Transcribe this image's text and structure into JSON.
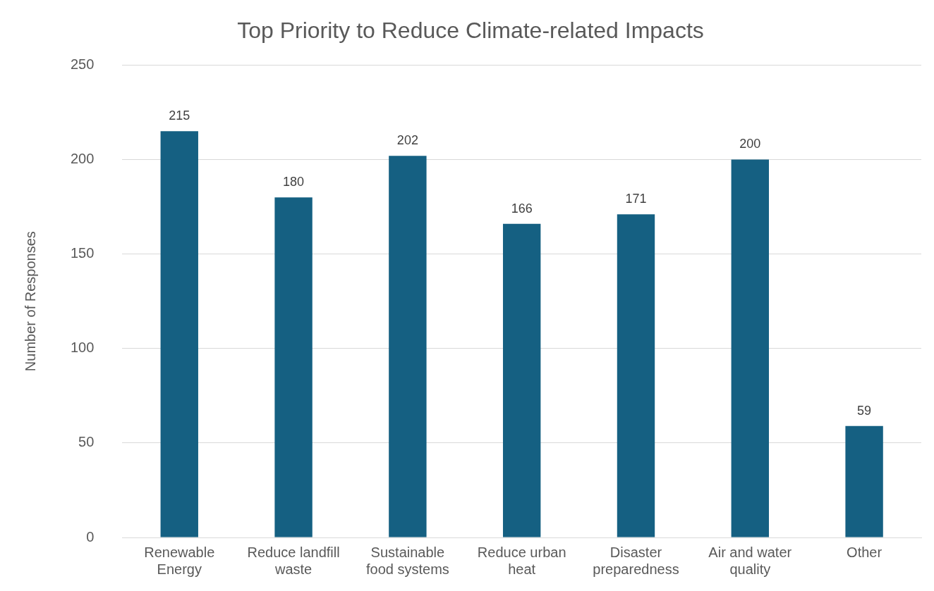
{
  "chart_data": {
    "type": "bar",
    "title": "Top Priority to Reduce Climate-related Impacts",
    "ylabel": "Number of Responses",
    "categories": [
      "Renewable Energy",
      "Reduce landfill waste",
      "Sustainable food systems",
      "Reduce urban heat",
      "Disaster preparedness",
      "Air and water quality",
      "Other"
    ],
    "values": [
      215,
      180,
      202,
      166,
      171,
      200,
      59
    ],
    "color": "#156082",
    "ylim": [
      0,
      250
    ],
    "yticks": [
      0,
      50,
      100,
      150,
      200,
      250
    ],
    "grid": "y",
    "data_labels": true,
    "legend": false
  }
}
